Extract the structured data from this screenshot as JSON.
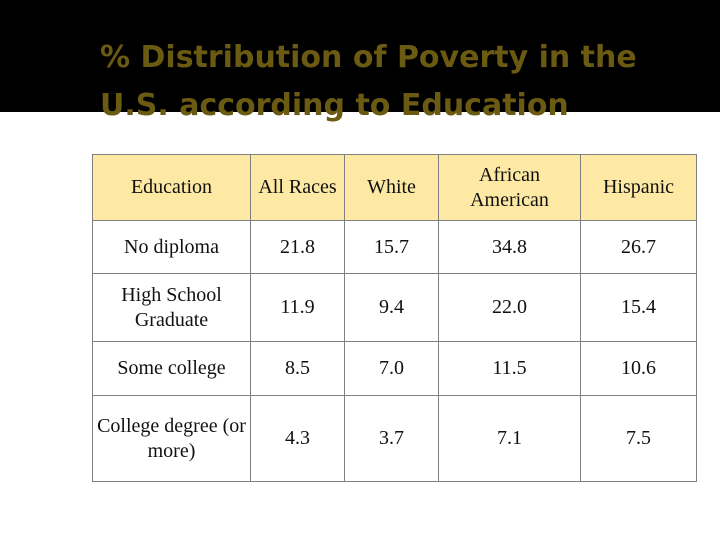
{
  "slide": {
    "title_line1": "% Distribution of Poverty in the",
    "title_line2": "U.S. according to Education"
  },
  "colors": {
    "title_band": "#000000",
    "title_text": "#6b5a12",
    "header_fill": "#fde9a3",
    "border": "#7f7f7f"
  },
  "table": {
    "headers": [
      "Education",
      "All Races",
      "White",
      "African American",
      "Hispanic"
    ],
    "rows": [
      [
        "No diploma",
        "21.8",
        "15.7",
        "34.8",
        "26.7"
      ],
      [
        "High School Graduate",
        "11.9",
        "9.4",
        "22.0",
        "15.4"
      ],
      [
        "Some college",
        "8.5",
        "7.0",
        "11.5",
        "10.6"
      ],
      [
        "College degree (or more)",
        "4.3",
        "3.7",
        "7.1",
        "7.5"
      ]
    ]
  }
}
